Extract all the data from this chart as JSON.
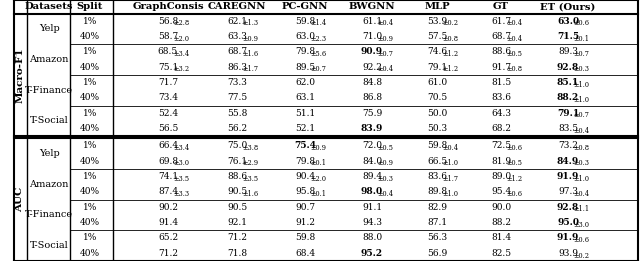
{
  "col_headers": [
    "Datasets",
    "Split",
    "GraphConsis",
    "CAREGNN",
    "PC-GNN",
    "BWGNN",
    "MLP",
    "GT",
    "ET (Ours)"
  ],
  "sections": [
    {
      "metric": "Macro-F1",
      "datasets": [
        {
          "name": "Yelp",
          "rows": [
            [
              "1%",
              "56.8",
              "±2.8",
              "62.1",
              "±1.3",
              "59.8",
              "±1.4",
              "61.1",
              "±0.4",
              "53.9",
              "±0.2",
              "61.7",
              "±0.4",
              "63.0",
              "±0.6",
              false,
              false,
              false,
              false,
              false,
              false,
              true
            ],
            [
              "40%",
              "58.7",
              "±2.0",
              "63.3",
              "±0.9",
              "63.0",
              "±2.3",
              "71.0",
              "±0.9",
              "57.5",
              "±0.8",
              "68.7",
              "±0.4",
              "71.5",
              "±0.1",
              false,
              false,
              false,
              false,
              false,
              false,
              true
            ]
          ]
        },
        {
          "name": "Amazon",
          "rows": [
            [
              "1%",
              "68.5",
              "±3.4",
              "68.7",
              "±1.6",
              "79.8",
              "±5.6",
              "90.9",
              "±0.7",
              "74.6",
              "±1.2",
              "88.6",
              "±0.5",
              "89.3",
              "±0.7",
              false,
              false,
              false,
              true,
              false,
              false,
              false
            ],
            [
              "40%",
              "75.1",
              "±3.2",
              "86.3",
              "±1.7",
              "89.5",
              "±0.7",
              "92.2",
              "±0.4",
              "79.1",
              "±1.2",
              "91.7",
              "±0.8",
              "92.8",
              "±0.3",
              false,
              false,
              false,
              false,
              false,
              false,
              true
            ]
          ]
        },
        {
          "name": "T-Finance",
          "rows": [
            [
              "1%",
              "71.7",
              "",
              "73.3",
              "",
              "62.0",
              "",
              "84.8",
              "",
              "61.0",
              "",
              "81.5",
              "",
              "85.1",
              "±1.0",
              false,
              false,
              false,
              false,
              false,
              false,
              true
            ],
            [
              "40%",
              "73.4",
              "",
              "77.5",
              "",
              "63.1",
              "",
              "86.8",
              "",
              "70.5",
              "",
              "83.6",
              "",
              "88.2",
              "±1.0",
              false,
              false,
              false,
              false,
              false,
              false,
              true
            ]
          ]
        },
        {
          "name": "T-Social",
          "rows": [
            [
              "1%",
              "52.4",
              "",
              "55.8",
              "",
              "51.1",
              "",
              "75.9",
              "",
              "50.0",
              "",
              "64.3",
              "",
              "79.1",
              "±0.7",
              false,
              false,
              false,
              false,
              false,
              false,
              true
            ],
            [
              "40%",
              "56.5",
              "",
              "56.2",
              "",
              "52.1",
              "",
              "83.9",
              "",
              "50.3",
              "",
              "68.2",
              "",
              "83.5",
              "±0.4",
              false,
              false,
              false,
              true,
              false,
              false,
              false
            ]
          ]
        }
      ]
    },
    {
      "metric": "AUC",
      "datasets": [
        {
          "name": "Yelp",
          "rows": [
            [
              "1%",
              "66.4",
              "±3.4",
              "75.0",
              "±3.8",
              "75.4",
              "±0.9",
              "72.0",
              "±0.5",
              "59.8",
              "±0.4",
              "72.5",
              "±0.6",
              "73.2",
              "±0.8",
              false,
              false,
              true,
              false,
              false,
              false,
              false
            ],
            [
              "40%",
              "69.8",
              "±3.0",
              "76.1",
              "±2.9",
              "79.8",
              "±0.1",
              "84.0",
              "±0.9",
              "66.5",
              "±1.0",
              "81.9",
              "±0.5",
              "84.9",
              "±0.3",
              false,
              false,
              false,
              false,
              false,
              false,
              true
            ]
          ]
        },
        {
          "name": "Amazon",
          "rows": [
            [
              "1%",
              "74.1",
              "±3.5",
              "88.6",
              "±3.5",
              "90.4",
              "±2.0",
              "89.4",
              "±0.3",
              "83.6",
              "±1.7",
              "89.0",
              "±1.2",
              "91.9",
              "±1.0",
              false,
              false,
              false,
              false,
              false,
              false,
              true
            ],
            [
              "40%",
              "87.4",
              "±3.3",
              "90.5",
              "±1.6",
              "95.8",
              "±0.1",
              "98.0",
              "±0.4",
              "89.8",
              "±1.0",
              "95.4",
              "±0.6",
              "97.3",
              "±0.4",
              false,
              false,
              false,
              true,
              false,
              false,
              false
            ]
          ]
        },
        {
          "name": "T-Finance",
          "rows": [
            [
              "1%",
              "90.2",
              "",
              "90.5",
              "",
              "90.7",
              "",
              "91.1",
              "",
              "82.9",
              "",
              "90.0",
              "",
              "92.8",
              "±1.1",
              false,
              false,
              false,
              false,
              false,
              false,
              true
            ],
            [
              "40%",
              "91.4",
              "",
              "92.1",
              "",
              "91.2",
              "",
              "94.3",
              "",
              "87.1",
              "",
              "88.2",
              "",
              "95.0",
              "±3.0",
              false,
              false,
              false,
              false,
              false,
              false,
              true
            ]
          ]
        },
        {
          "name": "T-Social",
          "rows": [
            [
              "1%",
              "65.2",
              "",
              "71.2",
              "",
              "59.8",
              "",
              "88.0",
              "",
              "56.3",
              "",
              "81.4",
              "",
              "91.9",
              "±0.6",
              false,
              false,
              false,
              false,
              false,
              false,
              true
            ],
            [
              "40%",
              "71.2",
              "",
              "71.8",
              "",
              "68.4",
              "",
              "95.2",
              "",
              "56.9",
              "",
              "82.5",
              "",
              "93.9",
              "±0.2",
              false,
              false,
              false,
              true,
              false,
              false,
              false
            ]
          ]
        }
      ]
    }
  ]
}
